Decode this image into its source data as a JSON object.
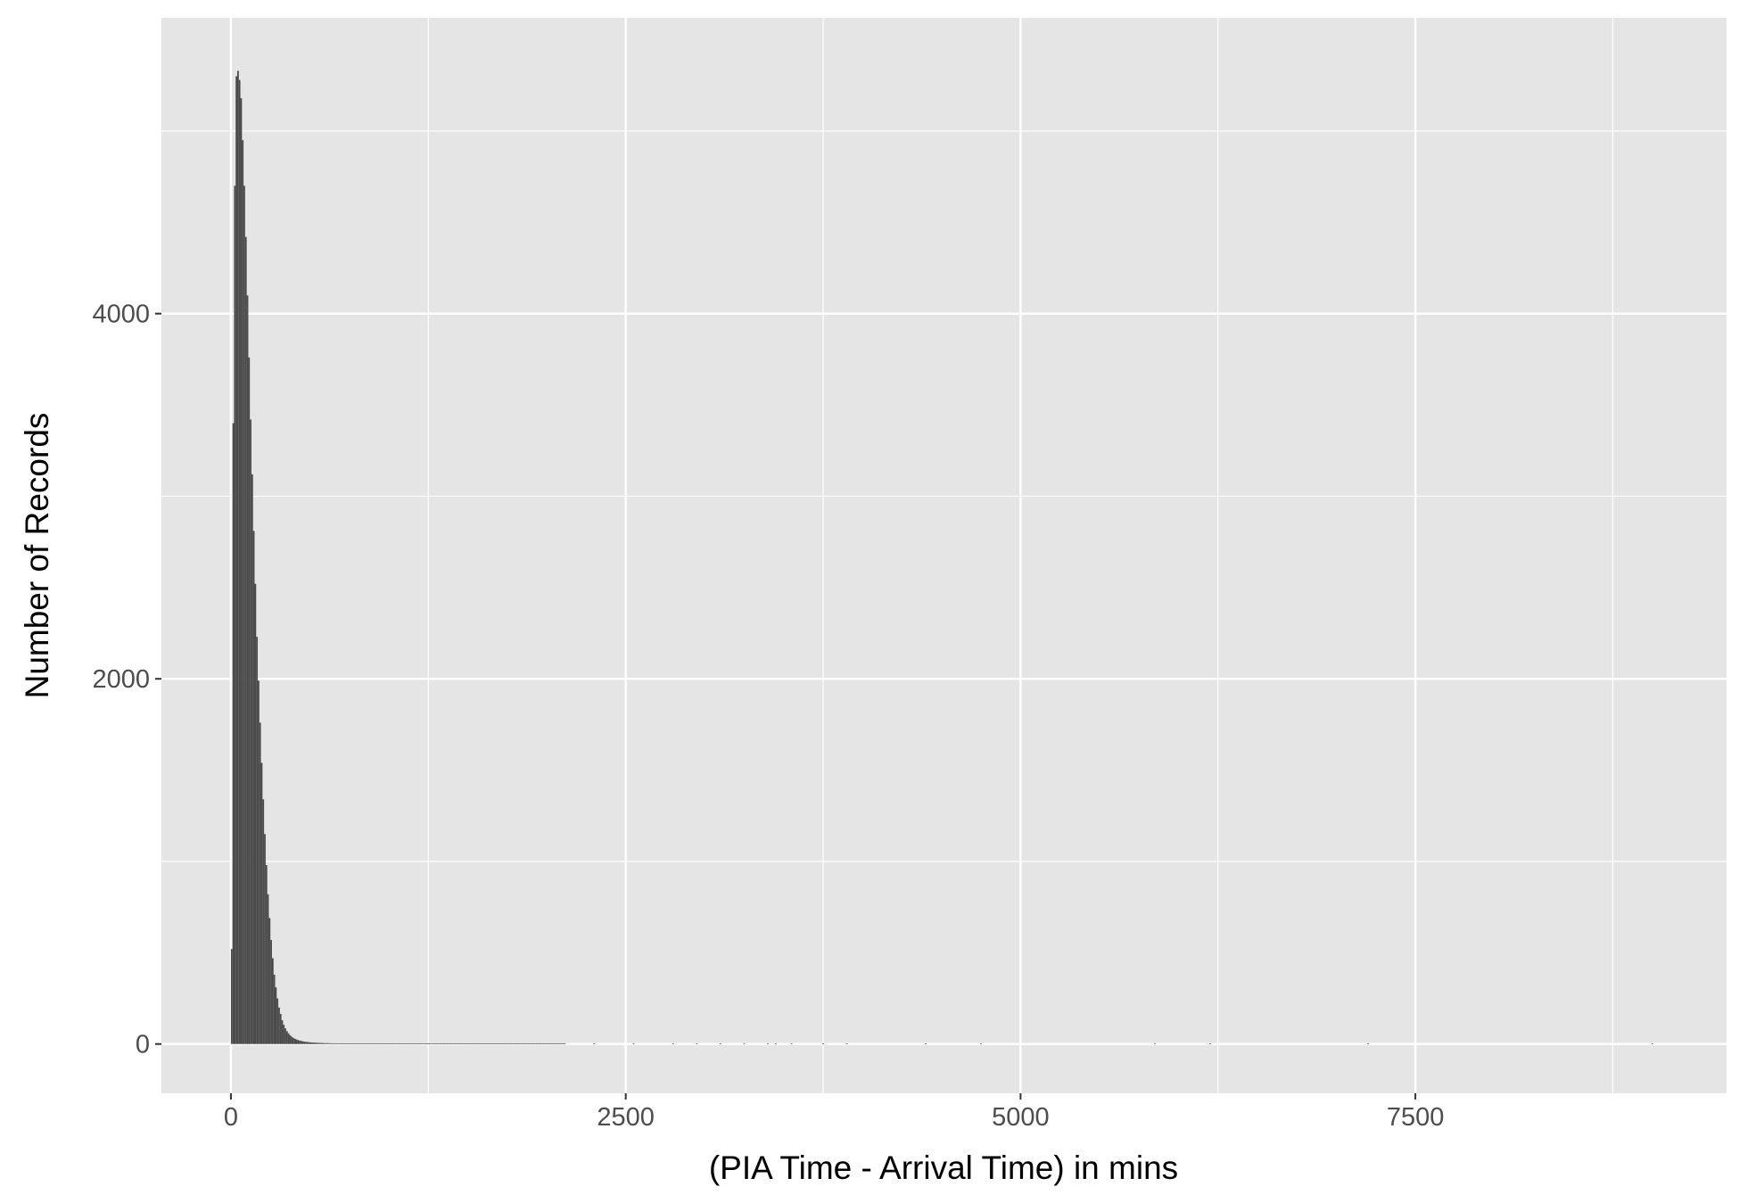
{
  "chart_data": {
    "type": "bar",
    "title": "",
    "xlabel": "(PIA Time - Arrival Time) in mins",
    "ylabel": "Number of Records",
    "xlim": [
      -440,
      9470
    ],
    "ylim": [
      -270,
      5620
    ],
    "x_ticks": [
      0,
      2500,
      5000,
      7500
    ],
    "x_tick_labels": [
      "0",
      "2500",
      "5000",
      "7500"
    ],
    "y_ticks": [
      0,
      2000,
      4000
    ],
    "y_tick_labels": [
      "0",
      "2000",
      "4000"
    ],
    "grid": true,
    "panel_background": "#e5e5e5",
    "gridline_color": "#ffffff",
    "bar_color": "#4a4a4a",
    "bin_width": 10,
    "bins_x": [
      5,
      15,
      25,
      35,
      45,
      55,
      65,
      75,
      85,
      95,
      105,
      115,
      125,
      135,
      145,
      155,
      165,
      175,
      185,
      195,
      205,
      215,
      225,
      235,
      245,
      255,
      265,
      275,
      285,
      295,
      305,
      315,
      325,
      335,
      345,
      355,
      365,
      375,
      385,
      395,
      405,
      415,
      425,
      435,
      445,
      455,
      465,
      475,
      485,
      495,
      505,
      515,
      525,
      535,
      545,
      555,
      565,
      575,
      585,
      595,
      605,
      615,
      625,
      635,
      645,
      655,
      665,
      675,
      685,
      695,
      705,
      715,
      725,
      735,
      745,
      755,
      765,
      775,
      785,
      795,
      805,
      815,
      825,
      835,
      845,
      855,
      865,
      875,
      885,
      895,
      905,
      915,
      925,
      935,
      945,
      955,
      965,
      975,
      985,
      995,
      1005,
      1015,
      1025,
      1035,
      1045,
      1055,
      1065,
      1075,
      1085,
      1095,
      1105,
      1115,
      1125,
      1135,
      1145,
      1155,
      1165,
      1175,
      1185,
      1195,
      1205,
      1215,
      1225,
      1235,
      1245,
      1255,
      1265,
      1275,
      1285,
      1295,
      1305,
      1315,
      1325,
      1335,
      1345,
      1355,
      1365,
      1375,
      1385,
      1395,
      1405,
      1415,
      1425,
      1435,
      1445,
      1455,
      1465,
      1475,
      1485,
      1495,
      1505,
      1515,
      1525,
      1535,
      1545,
      1555,
      1565,
      1575,
      1585,
      1595,
      1605,
      1615,
      1625,
      1635,
      1645,
      1655,
      1665,
      1675,
      1685,
      1695,
      1705,
      1715,
      1725,
      1735,
      1745,
      1755,
      1765,
      1775,
      1785,
      1795,
      1805,
      1815,
      1825,
      1835,
      1845,
      1855,
      1865,
      1875,
      1885,
      1895,
      1905,
      1915,
      1925,
      1935,
      1945,
      1955,
      1965,
      1975,
      1985,
      1995,
      2005,
      2015,
      2025,
      2035,
      2045,
      2055,
      2065,
      2075,
      2085,
      2095,
      2105,
      2115,
      2125,
      2135,
      2145
    ],
    "values": [
      520,
      3400,
      4700,
      5300,
      5330,
      5280,
      5180,
      4950,
      4700,
      4420,
      4100,
      3760,
      3420,
      3120,
      2810,
      2520,
      2230,
      1990,
      1760,
      1540,
      1340,
      1150,
      980,
      820,
      690,
      570,
      470,
      380,
      310,
      250,
      200,
      165,
      130,
      105,
      86,
      70,
      58,
      48,
      40,
      34,
      29,
      25,
      22,
      19,
      17,
      15,
      13,
      12,
      11,
      10,
      9,
      8,
      8,
      7,
      7,
      6,
      6,
      6,
      5,
      5,
      5,
      5,
      4,
      4,
      4,
      4,
      4,
      3,
      3,
      3,
      3,
      3,
      3,
      3,
      3,
      2,
      2,
      2,
      2,
      2,
      2,
      2,
      2,
      2,
      2,
      2,
      2,
      2,
      2,
      2,
      2,
      2,
      2,
      2,
      2,
      1,
      1,
      1,
      1,
      1,
      1,
      1,
      1,
      1,
      1,
      1,
      1,
      1,
      1,
      1,
      1,
      1,
      1,
      1,
      1,
      1,
      1,
      1,
      1,
      1,
      1,
      1,
      1,
      1,
      1,
      1,
      1,
      1,
      1,
      1,
      1,
      1,
      1,
      1,
      1,
      1,
      1,
      1,
      1,
      1,
      1,
      1,
      1,
      1,
      1,
      1,
      1,
      1,
      1,
      1,
      1,
      1,
      1,
      1,
      1,
      1,
      1,
      1,
      1,
      1,
      1,
      1,
      1,
      1,
      1,
      1,
      1,
      1,
      1,
      1,
      1,
      1,
      1,
      1,
      1,
      1,
      1,
      1,
      1,
      1,
      1,
      1,
      1,
      1,
      1,
      1,
      1,
      1,
      1,
      1,
      1,
      1,
      1,
      1,
      1,
      1,
      1,
      1,
      1,
      1,
      1,
      1,
      1,
      1,
      1,
      1,
      1,
      1,
      1,
      1,
      1,
      1
    ],
    "sparse_x": [
      2300,
      2550,
      2800,
      2950,
      3100,
      3250,
      3400,
      3450,
      3550,
      3750,
      3900,
      4400,
      4750,
      5850,
      6200,
      7200,
      9000
    ],
    "sparse_values": [
      1,
      1,
      1,
      1,
      1,
      1,
      1,
      1,
      1,
      1,
      1,
      1,
      1,
      1,
      1,
      1,
      1
    ]
  }
}
